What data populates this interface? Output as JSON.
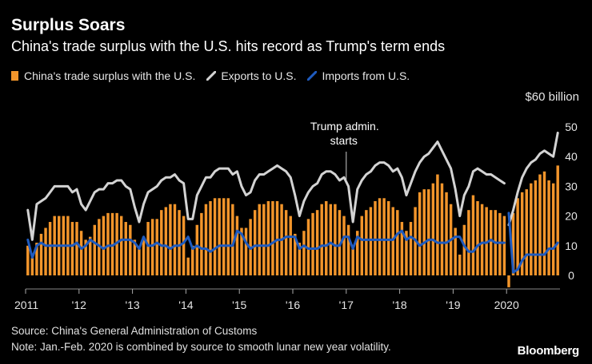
{
  "header": {
    "title": "Surplus Soars",
    "subtitle": "China's trade surplus with the U.S. hits record as Trump's term ends"
  },
  "footer": {
    "source": "Source: China's General Administration of Customs",
    "note": "Note: Jan.-Feb. 2020 is combined by source to smooth lunar new year volatility.",
    "brand": "Bloomberg"
  },
  "colors": {
    "background": "#000000",
    "surplus_bars": "#f2952b",
    "exports_line": "#d3d3d3",
    "imports_line": "#1f5bbf",
    "annotation_line": "#cccccc"
  },
  "chart_data": {
    "type": "bar+line",
    "title": "Surplus Soars",
    "subtitle": "China's trade surplus with the U.S. hits record as Trump's term ends",
    "unit_label": "$60 billion",
    "ylim": [
      -5,
      60
    ],
    "yticks": [
      0,
      10,
      20,
      30,
      40,
      50
    ],
    "ytick_labels": [
      "0",
      "10",
      "20",
      "30",
      "40",
      "50"
    ],
    "xtick_labels": [
      {
        "label": "2011",
        "index": 0
      },
      {
        "label": "'12",
        "index": 12
      },
      {
        "label": "'13",
        "index": 24
      },
      {
        "label": "'14",
        "index": 36
      },
      {
        "label": "'15",
        "index": 48
      },
      {
        "label": "'16",
        "index": 60
      },
      {
        "label": "'17",
        "index": 72
      },
      {
        "label": "'18",
        "index": 84
      },
      {
        "label": "'19",
        "index": 96
      },
      {
        "label": "2020",
        "index": 108
      }
    ],
    "annotation": {
      "text_line1": "Trump admin.",
      "text_line2": "starts",
      "index": 72
    },
    "legend": [
      {
        "name": "China's trade surplus with the U.S.",
        "kind": "bar"
      },
      {
        "name": "Exports to U.S.",
        "kind": "line"
      },
      {
        "name": "Imports from U.S.",
        "kind": "line"
      }
    ],
    "period": "Jan 2011 - Dec 2020, monthly ($ billion)",
    "series": [
      {
        "name": "China's trade surplus with the U.S.",
        "values": [
          10,
          6,
          11,
          14,
          16,
          18,
          20,
          20,
          20,
          20,
          18,
          18,
          15,
          12,
          13,
          17,
          19,
          20,
          21,
          21,
          21,
          20,
          18,
          17,
          12,
          9,
          13,
          18,
          19,
          19,
          22,
          23,
          24,
          24,
          22,
          20,
          6,
          10,
          17,
          21,
          24,
          25,
          26,
          26,
          26,
          26,
          24,
          20,
          16,
          16,
          19,
          22,
          24,
          24,
          25,
          25,
          25,
          24,
          22,
          20,
          14,
          11,
          15,
          19,
          21,
          22,
          24,
          25,
          24,
          24,
          22,
          20,
          17,
          9,
          15,
          20,
          22,
          23,
          25,
          26,
          26,
          25,
          23,
          22,
          18,
          15,
          18,
          23,
          28,
          29,
          29,
          31,
          34,
          31,
          28,
          24,
          16,
          7,
          17,
          22,
          27,
          25,
          24,
          23,
          22,
          22,
          21,
          20,
          -4,
          21,
          26,
          28,
          29,
          31,
          32,
          34,
          35,
          32,
          31,
          37
        ]
      },
      {
        "name": "Exports to U.S.",
        "values": [
          22,
          12,
          24,
          25,
          26,
          28,
          30,
          30,
          30,
          30,
          28,
          29,
          24,
          22,
          25,
          28,
          29,
          29,
          31,
          31,
          32,
          32,
          30,
          29,
          23,
          18,
          24,
          28,
          29,
          30,
          32,
          33,
          33,
          34,
          32,
          31,
          19,
          19,
          27,
          30,
          33,
          33,
          35,
          36,
          36,
          36,
          34,
          35,
          30,
          27,
          28,
          32,
          34,
          34,
          35,
          36,
          37,
          36,
          35,
          33,
          27,
          20,
          25,
          28,
          30,
          31,
          34,
          35,
          35,
          34,
          32,
          33,
          30,
          18,
          29,
          32,
          34,
          35,
          37,
          38,
          38,
          37,
          35,
          36,
          33,
          27,
          31,
          35,
          38,
          40,
          41,
          43,
          45,
          42,
          39,
          36,
          29,
          20,
          27,
          30,
          35,
          36,
          35,
          34,
          34,
          33,
          32,
          31,
          17,
          22,
          28,
          33,
          36,
          38,
          39,
          41,
          42,
          41,
          40,
          48
        ]
      },
      {
        "name": "Imports from U.S.",
        "values": [
          12,
          6,
          10,
          11,
          10,
          10,
          10,
          10,
          10,
          10,
          10,
          11,
          9,
          10,
          12,
          11,
          10,
          9,
          10,
          10,
          11,
          12,
          12,
          12,
          11,
          9,
          13,
          10,
          10,
          11,
          10,
          10,
          9,
          10,
          10,
          11,
          13,
          9,
          10,
          9,
          9,
          8,
          9,
          10,
          10,
          10,
          10,
          15,
          14,
          11,
          9,
          10,
          10,
          10,
          10,
          11,
          12,
          12,
          13,
          13,
          13,
          9,
          10,
          9,
          9,
          9,
          10,
          10,
          11,
          10,
          10,
          13,
          13,
          9,
          13,
          12,
          12,
          12,
          12,
          12,
          12,
          12,
          12,
          14,
          15,
          12,
          13,
          12,
          10,
          11,
          12,
          12,
          11,
          11,
          11,
          12,
          13,
          13,
          10,
          8,
          8,
          10,
          11,
          11,
          12,
          11,
          11,
          11,
          21,
          1,
          2,
          5,
          7,
          7,
          7,
          7,
          7,
          9,
          9,
          11
        ]
      }
    ]
  }
}
